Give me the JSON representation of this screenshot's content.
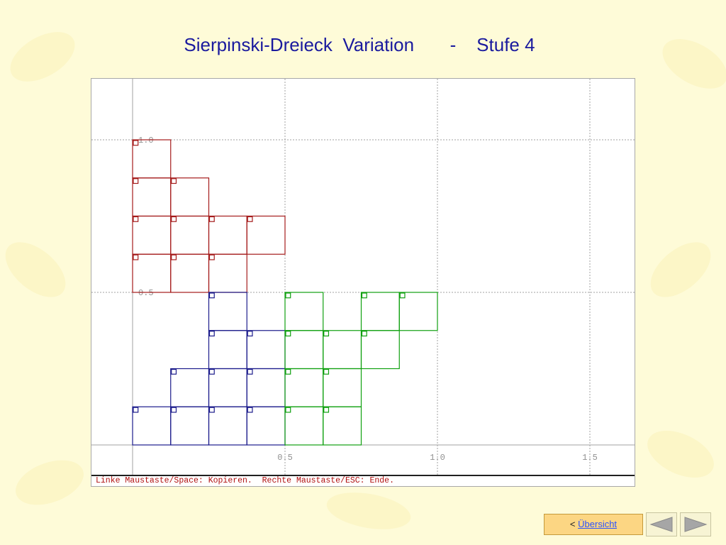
{
  "title": "Sierpinski-Dreieck  Variation       -    Stufe 4",
  "plot": {
    "x_ticks": [
      {
        "value": 0.5,
        "label": "0.5"
      },
      {
        "value": 1.0,
        "label": "1.0"
      },
      {
        "value": 1.5,
        "label": "1.5"
      }
    ],
    "y_ticks": [
      {
        "value": 0.5,
        "label": "0.5"
      },
      {
        "value": 1.0,
        "label": "1.0"
      }
    ],
    "colors": {
      "red": "#a51c1c",
      "blue": "#1c1c8c",
      "green": "#10a010",
      "grid": "#a0a0a0"
    },
    "squares": {
      "red": [
        [
          0,
          0.875
        ],
        [
          0,
          0.75
        ],
        [
          0.125,
          0.75
        ],
        [
          0,
          0.625
        ],
        [
          0.125,
          0.625
        ],
        [
          0.25,
          0.625
        ],
        [
          0.375,
          0.625
        ],
        [
          0,
          0.5
        ],
        [
          0.125,
          0.5
        ],
        [
          0.25,
          0.5
        ]
      ],
      "blue": [
        [
          0.25,
          0.375
        ],
        [
          0.25,
          0.25
        ],
        [
          0.375,
          0.25
        ],
        [
          0.125,
          0.125
        ],
        [
          0.25,
          0.125
        ],
        [
          0.375,
          0.125
        ],
        [
          0,
          0
        ],
        [
          0.125,
          0
        ],
        [
          0.25,
          0
        ],
        [
          0.375,
          0
        ]
      ],
      "green": [
        [
          0.5,
          0.375
        ],
        [
          0.75,
          0.375
        ],
        [
          0.875,
          0.375
        ],
        [
          0.5,
          0.25
        ],
        [
          0.625,
          0.25
        ],
        [
          0.75,
          0.25
        ],
        [
          0.5,
          0.125
        ],
        [
          0.625,
          0.125
        ],
        [
          0.5,
          0
        ],
        [
          0.625,
          0
        ]
      ]
    }
  },
  "status_bar": "Linke Maustaste/Space: Kopieren.  Rechte Maustaste/ESC: Ende.",
  "nav": {
    "prefix": "<",
    "link_label": "Übersicht",
    "prev_icon": "triangle-left-icon",
    "next_icon": "triangle-right-icon"
  }
}
